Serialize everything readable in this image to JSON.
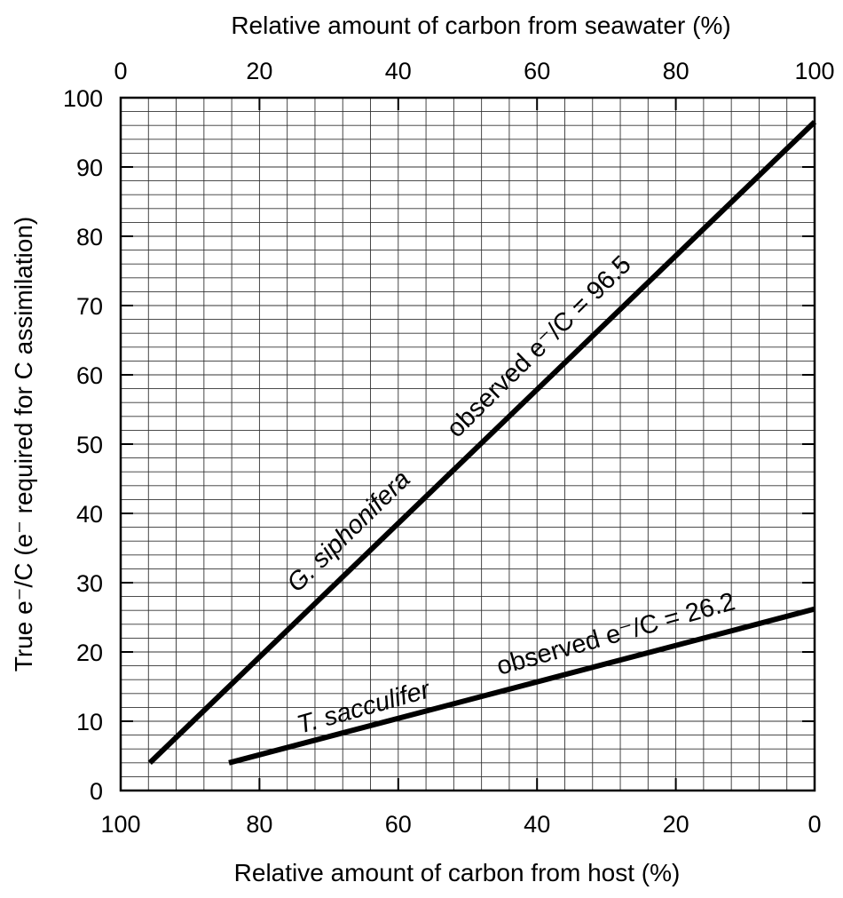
{
  "chart_data": {
    "type": "line",
    "title": "",
    "xlabel_bottom": "Relative amount of carbon from host (%)",
    "xlabel_top": "Relative amount of carbon from seawater (%)",
    "ylabel": "True  e⁻/C   (e⁻ required for C assimilation)",
    "xlim_top": [
      0,
      100
    ],
    "xlim_bottom": [
      100,
      0
    ],
    "ylim": [
      0,
      100
    ],
    "x_ticks_top": [
      "0",
      "20",
      "40",
      "60",
      "80",
      "100"
    ],
    "x_ticks_bottom": [
      "100",
      "80",
      "60",
      "40",
      "20",
      "0"
    ],
    "y_ticks": [
      "0",
      "10",
      "20",
      "30",
      "40",
      "50",
      "60",
      "70",
      "80",
      "90",
      "100"
    ],
    "grid": true,
    "series": [
      {
        "name": "G. siphonifera",
        "observed_label": "observed e⁻/C = 96.5",
        "x_seawater": [
          4.2,
          100
        ],
        "y": [
          4,
          96.5
        ]
      },
      {
        "name": "T. sacculifer",
        "observed_label": "observed e⁻/C = 26.2",
        "x_seawater": [
          15.6,
          100
        ],
        "y": [
          4,
          26.2
        ]
      }
    ]
  }
}
